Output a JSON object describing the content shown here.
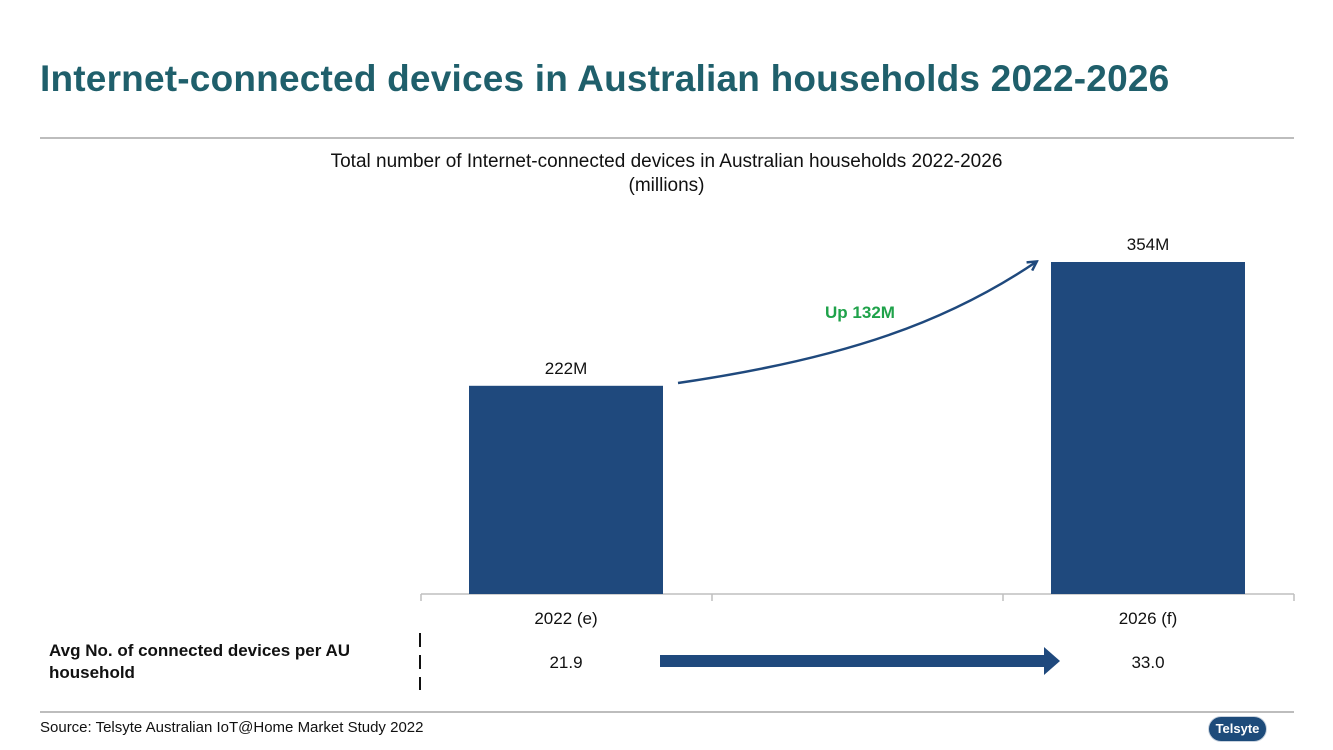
{
  "slide": {
    "title": "Internet-connected devices in Australian households 2022-2026",
    "source": "Source: Telsyte Australian IoT@Home Market Study 2022",
    "logo_text": "Telsyte"
  },
  "chart_data": {
    "type": "bar",
    "title": "Total number of Internet-connected devices in Australian households 2022-2026",
    "subtitle": "(millions)",
    "categories": [
      "2022 (e)",
      "2026 (f)"
    ],
    "values": [
      222,
      354
    ],
    "data_labels": [
      "222M",
      "354M"
    ],
    "annotation": "Up 132M",
    "ylim": [
      0,
      354
    ],
    "bar_color": "#1f497d",
    "annotation_color": "#1fa24a",
    "avg_row": {
      "label": "Avg No. of connected devices per AU household",
      "values": [
        "21.9",
        "33.0"
      ]
    }
  }
}
